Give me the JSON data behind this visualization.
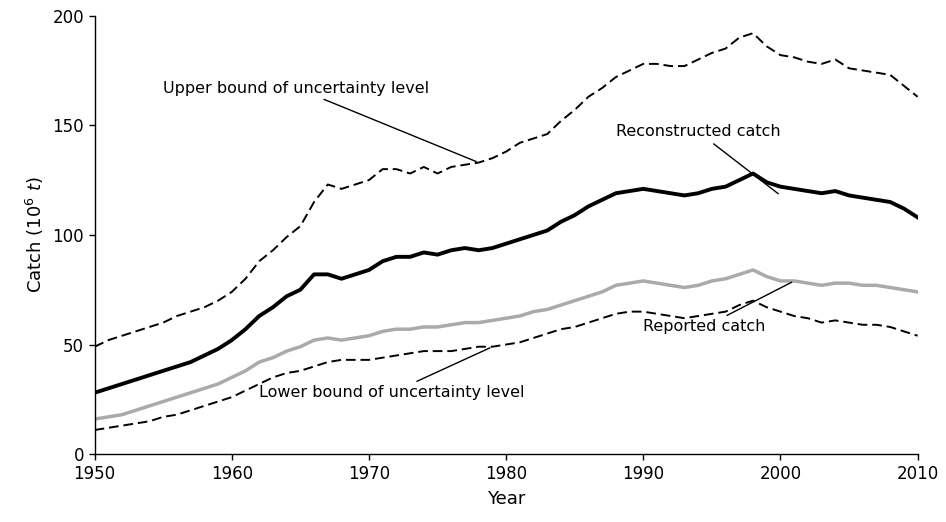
{
  "years": [
    1950,
    1951,
    1952,
    1953,
    1954,
    1955,
    1956,
    1957,
    1958,
    1959,
    1960,
    1961,
    1962,
    1963,
    1964,
    1965,
    1966,
    1967,
    1968,
    1969,
    1970,
    1971,
    1972,
    1973,
    1974,
    1975,
    1976,
    1977,
    1978,
    1979,
    1980,
    1981,
    1982,
    1983,
    1984,
    1985,
    1986,
    1987,
    1988,
    1989,
    1990,
    1991,
    1992,
    1993,
    1994,
    1995,
    1996,
    1997,
    1998,
    1999,
    2000,
    2001,
    2002,
    2003,
    2004,
    2005,
    2006,
    2007,
    2008,
    2009,
    2010
  ],
  "reconstructed": [
    28,
    30,
    32,
    34,
    36,
    38,
    40,
    42,
    45,
    48,
    52,
    57,
    63,
    67,
    72,
    75,
    82,
    82,
    80,
    82,
    84,
    88,
    90,
    90,
    92,
    91,
    93,
    94,
    93,
    94,
    96,
    98,
    100,
    102,
    106,
    109,
    113,
    116,
    119,
    120,
    121,
    120,
    119,
    118,
    119,
    121,
    122,
    125,
    128,
    124,
    122,
    121,
    120,
    119,
    120,
    118,
    117,
    116,
    115,
    112,
    108
  ],
  "reported": [
    16,
    17,
    18,
    20,
    22,
    24,
    26,
    28,
    30,
    32,
    35,
    38,
    42,
    44,
    47,
    49,
    52,
    53,
    52,
    53,
    54,
    56,
    57,
    57,
    58,
    58,
    59,
    60,
    60,
    61,
    62,
    63,
    65,
    66,
    68,
    70,
    72,
    74,
    77,
    78,
    79,
    78,
    77,
    76,
    77,
    79,
    80,
    82,
    84,
    81,
    79,
    79,
    78,
    77,
    78,
    78,
    77,
    77,
    76,
    75,
    74
  ],
  "upper_bound": [
    49,
    52,
    54,
    56,
    58,
    60,
    63,
    65,
    67,
    70,
    74,
    80,
    88,
    93,
    99,
    104,
    115,
    123,
    121,
    123,
    125,
    130,
    130,
    128,
    131,
    128,
    131,
    132,
    133,
    135,
    138,
    142,
    144,
    146,
    152,
    157,
    163,
    167,
    172,
    175,
    178,
    178,
    177,
    177,
    180,
    183,
    185,
    190,
    192,
    186,
    182,
    181,
    179,
    178,
    180,
    176,
    175,
    174,
    173,
    168,
    163
  ],
  "lower_bound": [
    11,
    12,
    13,
    14,
    15,
    17,
    18,
    20,
    22,
    24,
    26,
    29,
    32,
    35,
    37,
    38,
    40,
    42,
    43,
    43,
    43,
    44,
    45,
    46,
    47,
    47,
    47,
    48,
    49,
    49,
    50,
    51,
    53,
    55,
    57,
    58,
    60,
    62,
    64,
    65,
    65,
    64,
    63,
    62,
    63,
    64,
    65,
    68,
    70,
    67,
    65,
    63,
    62,
    60,
    61,
    60,
    59,
    59,
    58,
    56,
    54
  ],
  "reconstructed_color": "#000000",
  "reported_color": "#aaaaaa",
  "bounds_color": "#000000",
  "xlabel": "Year",
  "ylim": [
    0,
    200
  ],
  "xlim": [
    1950,
    2010
  ],
  "yticks": [
    0,
    50,
    100,
    150,
    200
  ],
  "xticks": [
    1950,
    1960,
    1970,
    1980,
    1990,
    2000,
    2010
  ],
  "background_color": "#ffffff",
  "reconstructed_lw": 2.8,
  "reported_lw": 2.5,
  "bounds_lw": 1.4,
  "ann_fontsize": 11.5
}
